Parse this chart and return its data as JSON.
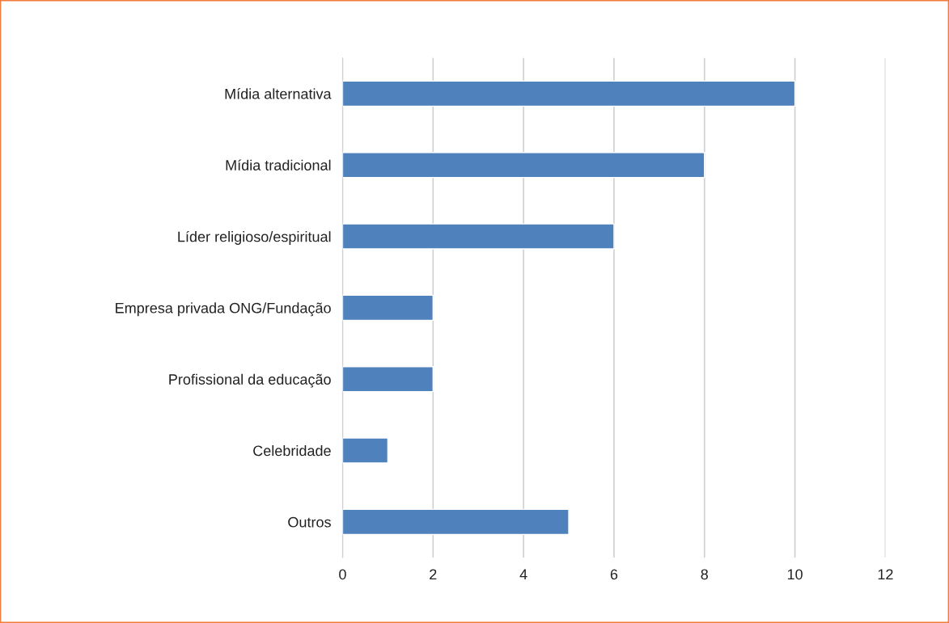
{
  "chart_data": {
    "type": "bar",
    "orientation": "horizontal",
    "categories": [
      "Mídia alternativa",
      "Mídia tradicional",
      "Líder religioso/espiritual",
      "Empresa privada ONG/Fundação",
      "Profissional da educação",
      "Celebridade",
      "Outros"
    ],
    "values": [
      10,
      8,
      6,
      2,
      2,
      1,
      5
    ],
    "color": "#4f81bd",
    "xlim": [
      0,
      12
    ],
    "xticks": [
      0,
      2,
      4,
      6,
      8,
      10,
      12
    ],
    "grid": "x",
    "legend": false
  }
}
